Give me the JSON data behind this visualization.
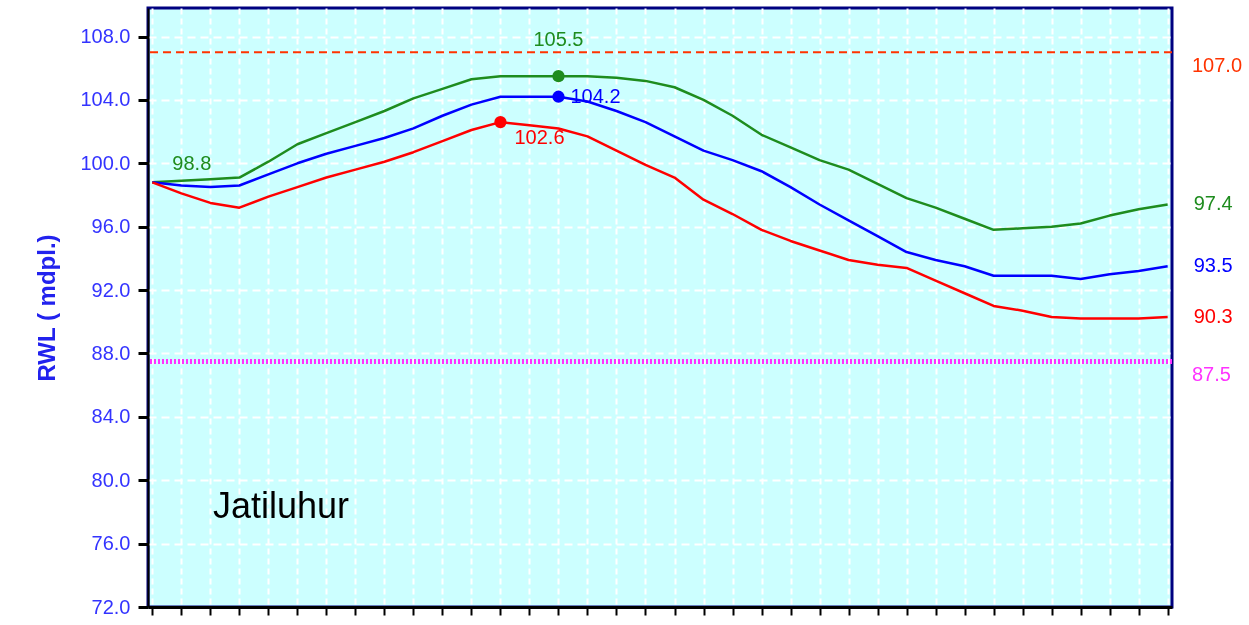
{
  "chart_data": {
    "type": "line",
    "ylabel": "RWL ( mdpl.)",
    "categories": [
      null,
      null,
      null,
      null,
      null,
      null,
      null,
      null,
      null,
      null,
      null,
      null,
      null,
      null,
      null,
      null,
      null,
      null,
      null,
      null,
      null,
      null,
      null,
      null,
      null,
      null,
      null,
      null,
      null,
      null,
      null,
      null,
      null,
      null,
      null,
      null
    ],
    "ylim": [
      72,
      109.8
    ],
    "yticks": [
      {
        "value": 72,
        "label": "72.0"
      },
      {
        "value": 76,
        "label": "76.0"
      },
      {
        "value": 80,
        "label": "80.0"
      },
      {
        "value": 84,
        "label": "84.0"
      },
      {
        "value": 88,
        "label": "88.0"
      },
      {
        "value": 92,
        "label": "92.0"
      },
      {
        "value": 96,
        "label": "96.0"
      },
      {
        "value": 100,
        "label": "100.0"
      },
      {
        "value": 104,
        "label": "104.0"
      },
      {
        "value": 108,
        "label": "108.0"
      }
    ],
    "grid": true,
    "tick_labels": "y",
    "line_style": "solid",
    "series": [
      {
        "color": "#1e8c1e",
        "values": [
          98.8,
          98.9,
          99.0,
          99.1,
          100.1,
          101.2,
          101.9,
          102.6,
          103.3,
          104.1,
          104.7,
          105.3,
          105.5,
          105.5,
          105.5,
          105.5,
          105.4,
          105.2,
          104.8,
          104.0,
          103.0,
          101.8,
          101.0,
          100.2,
          99.6,
          98.7,
          97.8,
          97.2,
          96.5,
          95.8,
          95.9,
          96.0,
          96.2,
          96.7,
          97.1,
          97.4
        ],
        "value_labels": [
          "98.8",
          null,
          null,
          null,
          null,
          null,
          null,
          null,
          null,
          null,
          null,
          null,
          null,
          null,
          "105.5",
          null,
          null,
          null,
          null,
          null,
          null,
          null,
          null,
          null,
          null,
          null,
          null,
          null,
          null,
          null,
          null,
          null,
          null,
          null,
          null,
          "97.4"
        ]
      },
      {
        "color": "#0000ff",
        "values": [
          98.8,
          98.6,
          98.5,
          98.6,
          99.3,
          100.0,
          100.6,
          101.1,
          101.6,
          102.2,
          103.0,
          103.7,
          104.2,
          104.2,
          104.2,
          103.9,
          103.3,
          102.6,
          101.7,
          100.8,
          100.2,
          99.5,
          98.5,
          97.4,
          96.4,
          95.4,
          94.4,
          93.9,
          93.5,
          92.9,
          92.9,
          92.9,
          92.7,
          93.0,
          93.2,
          93.5
        ],
        "value_labels": [
          null,
          null,
          null,
          null,
          null,
          null,
          null,
          null,
          null,
          null,
          null,
          null,
          null,
          null,
          "104.2",
          null,
          null,
          null,
          null,
          null,
          null,
          null,
          null,
          null,
          null,
          null,
          null,
          null,
          null,
          null,
          null,
          null,
          null,
          null,
          null,
          "93.5"
        ]
      },
      {
        "color": "#ff0000",
        "values": [
          98.8,
          98.1,
          97.5,
          97.2,
          97.9,
          98.5,
          99.1,
          99.6,
          100.1,
          100.7,
          101.4,
          102.1,
          102.6,
          102.4,
          102.2,
          101.7,
          100.8,
          99.9,
          99.1,
          97.7,
          96.8,
          95.8,
          95.1,
          94.5,
          93.9,
          93.6,
          93.4,
          92.6,
          91.8,
          91.0,
          90.7,
          90.3,
          90.2,
          90.2,
          90.2,
          90.3
        ],
        "value_labels": [
          null,
          null,
          null,
          null,
          null,
          null,
          null,
          null,
          null,
          null,
          null,
          null,
          "102.6",
          null,
          null,
          null,
          null,
          null,
          null,
          null,
          null,
          null,
          null,
          null,
          null,
          null,
          null,
          null,
          null,
          null,
          null,
          null,
          null,
          null,
          null,
          "90.3"
        ]
      },
      {
        "type": "scatter",
        "color": "#1e8c1e",
        "values": [
          null,
          null,
          null,
          null,
          null,
          null,
          null,
          null,
          null,
          null,
          null,
          null,
          null,
          null,
          105.5,
          null,
          null,
          null,
          null,
          null,
          null,
          null,
          null,
          null,
          null,
          null,
          null,
          null,
          null,
          null,
          null,
          null,
          null,
          null,
          null,
          null
        ]
      },
      {
        "type": "scatter",
        "color": "#0000ff",
        "values": [
          null,
          null,
          null,
          null,
          null,
          null,
          null,
          null,
          null,
          null,
          null,
          null,
          null,
          null,
          104.2,
          null,
          null,
          null,
          null,
          null,
          null,
          null,
          null,
          null,
          null,
          null,
          null,
          null,
          null,
          null,
          null,
          null,
          null,
          null,
          null,
          null
        ]
      },
      {
        "type": "scatter",
        "color": "#ff0000",
        "values": [
          null,
          null,
          null,
          null,
          null,
          null,
          null,
          null,
          null,
          null,
          null,
          null,
          102.6,
          null,
          null,
          null,
          null,
          null,
          null,
          null,
          null,
          null,
          null,
          null,
          null,
          null,
          null,
          null,
          null,
          null,
          null,
          null,
          null,
          null,
          null,
          null
        ]
      }
    ],
    "ref_lines": [
      {
        "axis": "y",
        "value": 107.0,
        "label": "107.0",
        "color": "#ff3300",
        "line_style": "dashed"
      },
      {
        "axis": "y",
        "value": 87.5,
        "label": "87.5",
        "color": "#ff33ff",
        "line_style": "dotted"
      }
    ],
    "annotations": [
      "Jatiluhur"
    ]
  }
}
